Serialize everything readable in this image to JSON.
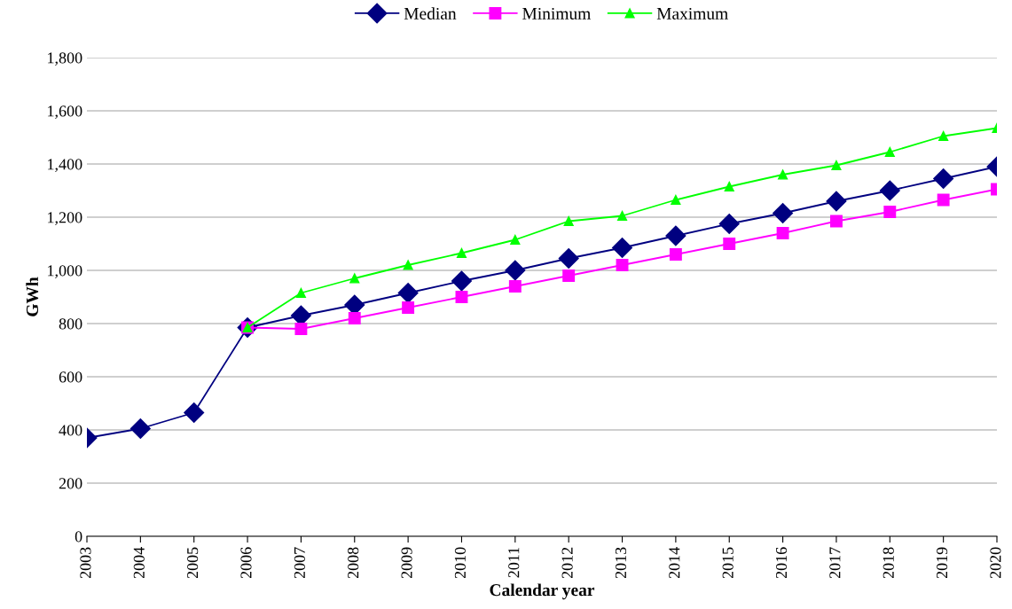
{
  "chart_data": {
    "type": "line",
    "xlabel": "Calendar year",
    "ylabel": "GWh",
    "categories": [
      "2003",
      "2004",
      "2005",
      "2006",
      "2007",
      "2008",
      "2009",
      "2010",
      "2011",
      "2012",
      "2013",
      "2014",
      "2015",
      "2016",
      "2017",
      "2018",
      "2019",
      "2020"
    ],
    "series": [
      {
        "name": "Median",
        "color": "#000080",
        "marker": "diamond",
        "values": [
          370,
          405,
          465,
          785,
          830,
          870,
          915,
          960,
          1000,
          1045,
          1085,
          1130,
          1175,
          1215,
          1260,
          1300,
          1345,
          1390
        ]
      },
      {
        "name": "Minimum",
        "color": "#ff00ff",
        "marker": "square",
        "values": [
          null,
          null,
          null,
          785,
          780,
          820,
          860,
          900,
          940,
          980,
          1020,
          1060,
          1100,
          1140,
          1185,
          1220,
          1265,
          1305
        ]
      },
      {
        "name": "Maximum",
        "color": "#00ff00",
        "marker": "triangle",
        "values": [
          null,
          null,
          null,
          785,
          915,
          970,
          1020,
          1065,
          1115,
          1185,
          1205,
          1265,
          1315,
          1360,
          1395,
          1445,
          1505,
          1535
        ]
      }
    ],
    "ylim": [
      0,
      1800
    ],
    "yticks": [
      {
        "value": 0,
        "label": "0"
      },
      {
        "value": 200,
        "label": "200"
      },
      {
        "value": 400,
        "label": "400"
      },
      {
        "value": 600,
        "label": "600"
      },
      {
        "value": 800,
        "label": "800"
      },
      {
        "value": 1000,
        "label": "1,000"
      },
      {
        "value": 1200,
        "label": "1,200"
      },
      {
        "value": 1400,
        "label": "1,400"
      },
      {
        "value": 1600,
        "label": "1,600"
      },
      {
        "value": 1800,
        "label": "1,800"
      }
    ],
    "grid": "y",
    "legend": "top"
  }
}
